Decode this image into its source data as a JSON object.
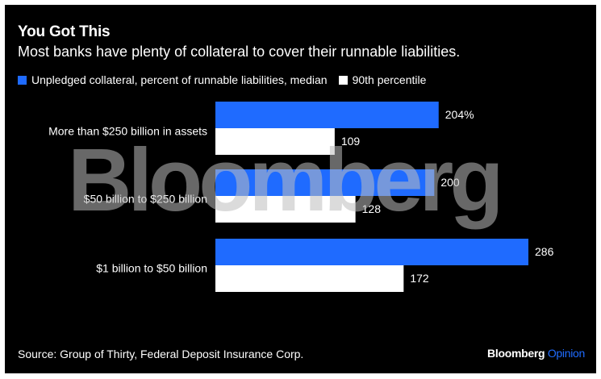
{
  "title": "You Got This",
  "subtitle": "Most banks have plenty of collateral to cover their runnable liabilities.",
  "source": "Source: Group of Thirty, Federal Deposit Insurance Corp.",
  "brand": {
    "name": "Bloomberg",
    "suffix": "Opinion"
  },
  "watermark": "Bloomberg",
  "colors": {
    "primary": "#1f6bff",
    "secondary": "#ffffff",
    "background": "#000000"
  },
  "chart_data": {
    "type": "bar",
    "orientation": "horizontal",
    "categories": [
      "More than $250 billion in assets",
      "$50 billion to $250 billion",
      "$1 billion to $50 billion"
    ],
    "series": [
      {
        "name": "Unpledged collateral, percent of runnable liabilities, median",
        "values": [
          204,
          200,
          286
        ],
        "labels": [
          "204%",
          "200",
          "286"
        ],
        "color": "#1f6bff"
      },
      {
        "name": "90th percentile",
        "values": [
          109,
          128,
          172
        ],
        "labels": [
          "109",
          "128",
          "172"
        ],
        "color": "#ffffff"
      }
    ],
    "xlim": [
      0,
      286
    ],
    "grid": false,
    "legend": "top-left"
  }
}
